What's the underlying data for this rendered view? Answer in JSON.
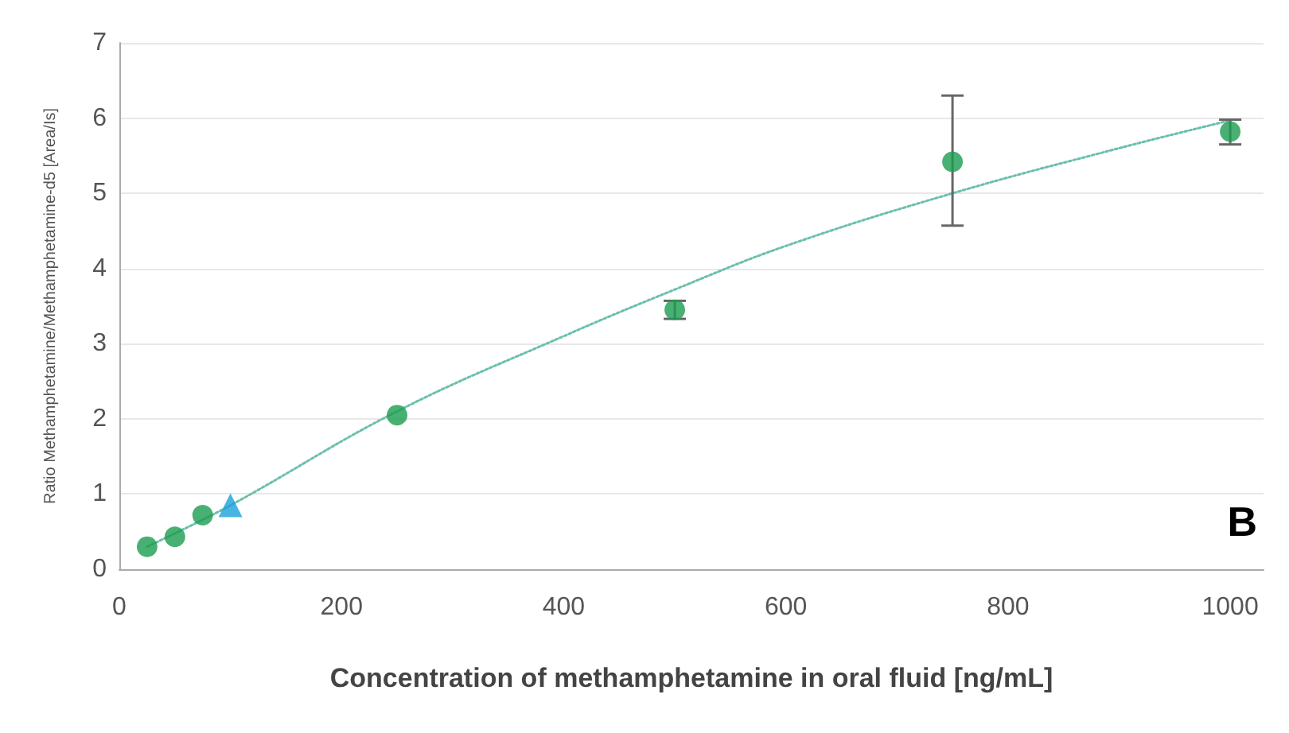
{
  "chart_data": {
    "type": "scatter",
    "xlabel": "Concentration of methamphetamine in oral fluid [ng/mL]",
    "ylabel": "Ratio Methamphetamine/Methamphetamine-d5 [Area/Is]",
    "xlim": [
      0,
      1030
    ],
    "xticks": [
      0,
      200,
      400,
      600,
      800,
      1000
    ],
    "ylim": [
      0,
      7
    ],
    "yticks": [
      0,
      1,
      2,
      3,
      4,
      5,
      6,
      7
    ],
    "grid": "y",
    "series": [
      {
        "color": "#1a9c4f",
        "marker": "circle",
        "x": [
          25,
          50,
          75,
          250,
          500,
          750,
          1000
        ],
        "values": [
          0.3,
          0.43,
          0.72,
          2.05,
          3.45,
          5.42,
          5.82
        ],
        "errors": [
          null,
          null,
          null,
          null,
          0.12,
          [
            4.57,
            6.3
          ],
          [
            5.65,
            5.98
          ]
        ]
      },
      {
        "color": "#1ba1d9",
        "marker": "triangle",
        "x": [
          100
        ],
        "values": [
          0.85
        ]
      },
      {
        "type": "line",
        "color": "#6bbfae",
        "line_style": "dotted",
        "marker": "none",
        "x": [
          25,
          100,
          250,
          400,
          500,
          600,
          750,
          900,
          1000
        ],
        "values": [
          0.3,
          0.85,
          2.1,
          3.1,
          3.72,
          4.3,
          5.0,
          5.6,
          5.97
        ]
      }
    ],
    "annotations": [
      "B"
    ]
  }
}
